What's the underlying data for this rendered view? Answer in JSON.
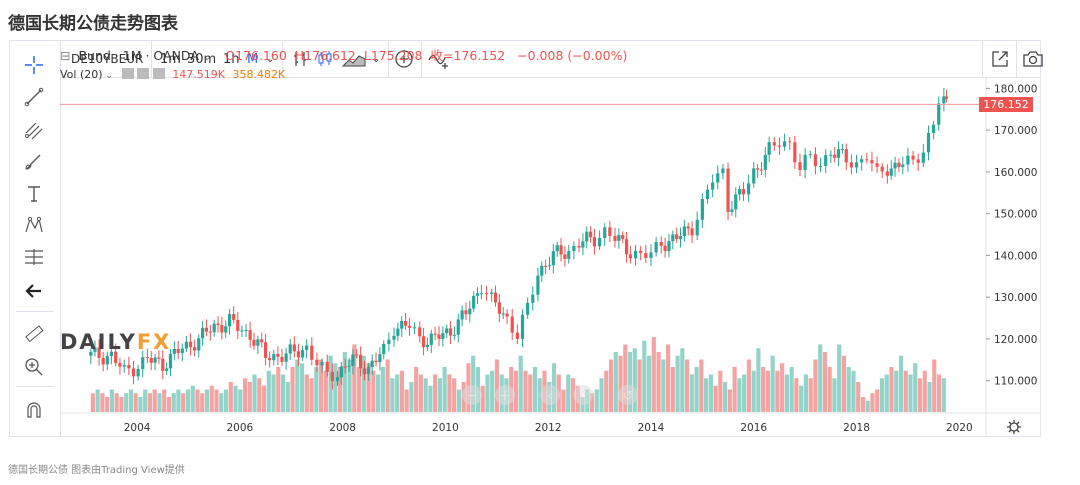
{
  "page": {
    "title": "德国长期公债走势图表",
    "footer": "德国长期公债 图表由Trading View提供"
  },
  "toolbar": {
    "symbol": "DE10YBEUR",
    "intervals": [
      "1m",
      "30m",
      "1h",
      "M"
    ],
    "active_interval": "M",
    "dropdown_icon": "chevron-down-icon"
  },
  "legend": {
    "name": "Bund · 1M · OANDA",
    "open": "O176.160",
    "high": "H176.612",
    "low": "L175.208",
    "close": "收=176.152",
    "change": "−0.008 (−0.00%)",
    "vol_label": "Vol (20)",
    "vol_value": "147.519K",
    "vol_ma": "358.482K"
  },
  "watermark": {
    "left": "DAILY",
    "right": "FX"
  },
  "last_price_label": "176.152",
  "colors": {
    "up": "#26a69a",
    "down": "#ef5350",
    "accent": "#2962ff",
    "vol_up": "#93d3c9",
    "vol_down": "#f3a3a2"
  },
  "chart_data": {
    "type": "candlestick",
    "x_ticks": [
      "2004",
      "2006",
      "2008",
      "2010",
      "2012",
      "2014",
      "2016",
      "2018",
      "2020"
    ],
    "y_ticks": [
      "110.000",
      "120.000",
      "130.000",
      "140.000",
      "150.000",
      "160.000",
      "170.000",
      "180.000"
    ],
    "y_range": [
      102.5,
      182
    ],
    "x_range": [
      2002.5,
      2020.5
    ],
    "last_price": 176.152,
    "series": [
      {
        "name": "price",
        "points": [
          [
            2003.1,
            116
          ],
          [
            2003.5,
            116
          ],
          [
            2003.75,
            112
          ],
          [
            2004.2,
            115
          ],
          [
            2004.5,
            114
          ],
          [
            2004.8,
            117
          ],
          [
            2005.2,
            120
          ],
          [
            2005.5,
            123
          ],
          [
            2005.8,
            124
          ],
          [
            2006.2,
            121
          ],
          [
            2006.5,
            116
          ],
          [
            2006.9,
            116
          ],
          [
            2007.3,
            118
          ],
          [
            2007.5,
            114
          ],
          [
            2007.7,
            111
          ],
          [
            2007.9,
            112
          ],
          [
            2008.2,
            115
          ],
          [
            2008.5,
            113
          ],
          [
            2008.8,
            117
          ],
          [
            2009.0,
            123
          ],
          [
            2009.3,
            123
          ],
          [
            2009.5,
            120
          ],
          [
            2009.8,
            120
          ],
          [
            2010.1,
            122
          ],
          [
            2010.4,
            126
          ],
          [
            2010.7,
            133
          ],
          [
            2010.9,
            129
          ],
          [
            2011.2,
            125
          ],
          [
            2011.4,
            121
          ],
          [
            2011.6,
            127
          ],
          [
            2011.8,
            136
          ],
          [
            2012.1,
            140
          ],
          [
            2012.4,
            141
          ],
          [
            2012.6,
            143
          ],
          [
            2012.9,
            144
          ],
          [
            2013.1,
            146
          ],
          [
            2013.3,
            144
          ],
          [
            2013.6,
            141
          ],
          [
            2013.8,
            140
          ],
          [
            2014.0,
            140
          ],
          [
            2014.2,
            143
          ],
          [
            2014.5,
            144
          ],
          [
            2014.8,
            147
          ],
          [
            2015.0,
            152
          ],
          [
            2015.2,
            158
          ],
          [
            2015.4,
            160
          ],
          [
            2015.5,
            152
          ],
          [
            2015.8,
            155
          ],
          [
            2016.0,
            160
          ],
          [
            2016.3,
            165
          ],
          [
            2016.5,
            167
          ],
          [
            2016.7,
            167
          ],
          [
            2016.9,
            161
          ],
          [
            2017.1,
            163
          ],
          [
            2017.3,
            162
          ],
          [
            2017.5,
            165
          ],
          [
            2017.8,
            163
          ],
          [
            2018.0,
            162
          ],
          [
            2018.2,
            164
          ],
          [
            2018.4,
            159
          ],
          [
            2018.6,
            161
          ],
          [
            2018.9,
            162
          ],
          [
            2019.1,
            162
          ],
          [
            2019.3,
            166
          ],
          [
            2019.5,
            171
          ],
          [
            2019.6,
            177
          ],
          [
            2019.7,
            177
          ],
          [
            2019.75,
            176
          ]
        ]
      },
      {
        "name": "volume",
        "values_relative": [
          0.25,
          0.3,
          0.25,
          0.2,
          0.3,
          0.25,
          0.2,
          0.25,
          0.3,
          0.25,
          0.2,
          0.3,
          0.25,
          0.3,
          0.25,
          0.3,
          0.2,
          0.25,
          0.3,
          0.25,
          0.3,
          0.35,
          0.3,
          0.25,
          0.3,
          0.35,
          0.3,
          0.25,
          0.3,
          0.4,
          0.35,
          0.3,
          0.45,
          0.4,
          0.5,
          0.45,
          0.35,
          0.55,
          0.5,
          0.6,
          0.5,
          0.4,
          0.6,
          0.7,
          0.65,
          0.5,
          0.45,
          0.6,
          0.7,
          0.55,
          0.75,
          0.65,
          0.6,
          0.8,
          0.7,
          0.9,
          0.6,
          0.75,
          0.65,
          0.55,
          0.5,
          0.6,
          0.7,
          0.45,
          0.5,
          0.55,
          0.3,
          0.4,
          0.6,
          0.5,
          0.45,
          0.35,
          0.5,
          0.45,
          0.6,
          0.5,
          0.45,
          0.3,
          0.4,
          0.65,
          0.75,
          0.6,
          0.35,
          0.5,
          0.55,
          0.7,
          0.5,
          0.45,
          0.6,
          0.55,
          0.75,
          0.55,
          0.5,
          0.6,
          0.45,
          0.55,
          0.4,
          0.65,
          0.5,
          0.3,
          0.5,
          0.45,
          0.35,
          0.2,
          0.3,
          0.25,
          0.3,
          0.45,
          0.55,
          0.7,
          0.8,
          0.75,
          0.9,
          0.8,
          0.85,
          0.7,
          0.95,
          0.75,
          1.0,
          0.8,
          0.7,
          0.9,
          0.6,
          0.75,
          0.85,
          0.7,
          0.5,
          0.6,
          0.7,
          0.45,
          0.5,
          0.35,
          0.55,
          0.4,
          0.3,
          0.6,
          0.45,
          0.5,
          0.7,
          0.55,
          0.85,
          0.6,
          0.55,
          0.75,
          0.55,
          0.65,
          0.5,
          0.6,
          0.45,
          0.35,
          0.5,
          0.45,
          0.7,
          0.9,
          0.8,
          0.6,
          0.45,
          0.9,
          0.75,
          0.6,
          0.55,
          0.4,
          0.2,
          0.15,
          0.25,
          0.3,
          0.45,
          0.5,
          0.6,
          0.55,
          0.75,
          0.55,
          0.5,
          0.65,
          0.45,
          0.55,
          0.4,
          0.7,
          0.5,
          0.45
        ]
      }
    ]
  }
}
